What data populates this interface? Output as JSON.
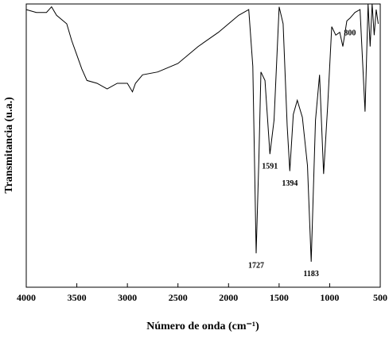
{
  "chart_data": {
    "type": "line",
    "x_label": "Número de onda (cm⁻¹)",
    "y_label": "Transmitancia (u.a.)",
    "x": [
      4000,
      3900,
      3800,
      3750,
      3700,
      3600,
      3550,
      3500,
      3450,
      3400,
      3300,
      3200,
      3100,
      3000,
      2950,
      2920,
      2850,
      2700,
      2500,
      2300,
      2100,
      2000,
      1900,
      1800,
      1760,
      1727,
      1700,
      1680,
      1640,
      1591,
      1550,
      1500,
      1460,
      1420,
      1394,
      1360,
      1320,
      1270,
      1220,
      1183,
      1140,
      1100,
      1060,
      1020,
      980,
      940,
      900,
      870,
      830,
      800,
      750,
      700,
      650,
      620,
      600,
      580,
      560,
      540,
      520
    ],
    "values": [
      98,
      97,
      97,
      99,
      96,
      93,
      87,
      82,
      77,
      73,
      72,
      70,
      72,
      72,
      69,
      72,
      75,
      76,
      79,
      85,
      90,
      93,
      96,
      98,
      78,
      12,
      45,
      76,
      73,
      47,
      59,
      99,
      93,
      57,
      41,
      61,
      66,
      60,
      43,
      9,
      59,
      75,
      40,
      64,
      92,
      89,
      90,
      85,
      94,
      95,
      97,
      98,
      62,
      100,
      85,
      100,
      89,
      98,
      93
    ],
    "color": "#000000",
    "xlim": [
      4000,
      500
    ],
    "xticks": [
      4000,
      3500,
      3000,
      2500,
      2000,
      1500,
      1000,
      500
    ],
    "ylim": [
      0,
      100
    ],
    "annotations": [
      "1727",
      "1591",
      "1394",
      "1183",
      "800"
    ]
  }
}
